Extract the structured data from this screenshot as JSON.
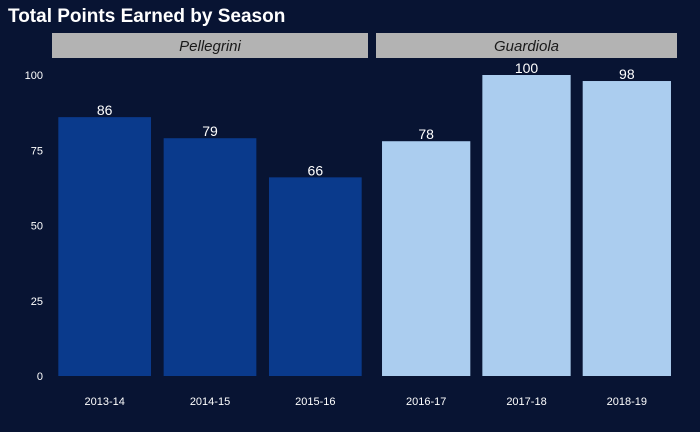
{
  "chart_data": {
    "type": "bar",
    "title": "Total Points Earned by Season",
    "xlabel": "",
    "ylabel": "",
    "ylim": [
      0,
      100
    ],
    "yticks": [
      0,
      25,
      50,
      75,
      100
    ],
    "grid": false,
    "legend": "none",
    "panels": [
      {
        "name": "Pellegrini",
        "categories": [
          "2013-14",
          "2014-15",
          "2015-16"
        ],
        "values": [
          86,
          79,
          66
        ],
        "color": "#0a3a8c"
      },
      {
        "name": "Guardiola",
        "categories": [
          "2016-17",
          "2017-18",
          "2018-19"
        ],
        "values": [
          78,
          100,
          98
        ],
        "color": "#abcdef"
      }
    ]
  },
  "colors": {
    "background": "#081433",
    "strip": "#b3b3b3",
    "text": "#ffffff"
  }
}
